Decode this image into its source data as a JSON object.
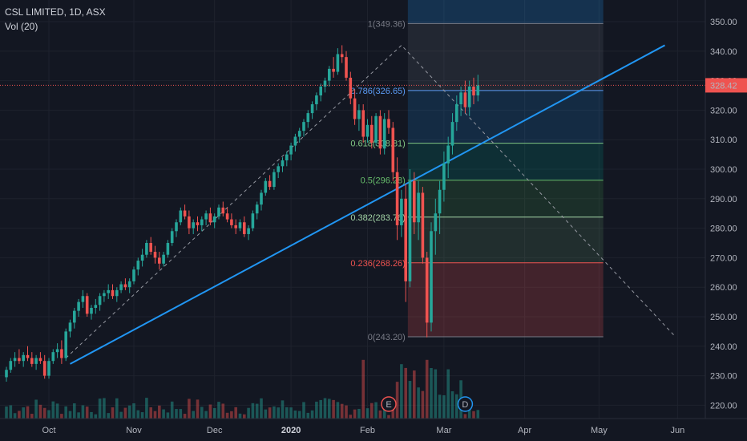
{
  "legend": {
    "symbol_line": "CSL LIMITED, 1D, ASX",
    "volume_line": "Vol (20)"
  },
  "colors": {
    "background": "#131722",
    "grid": "#1e222d",
    "up": "#26a69a",
    "down": "#ef5350",
    "trendline": "#2196f3",
    "price_tag": "#ef5350"
  },
  "chart_data": {
    "type": "candlestick",
    "ylim": [
      215,
      355
    ],
    "grid": true,
    "y_ticks": [
      "350.00",
      "340.00",
      "330.00",
      "320.00",
      "310.00",
      "300.00",
      "290.00",
      "280.00",
      "270.00",
      "260.00",
      "250.00",
      "240.00",
      "230.00",
      "220.00"
    ],
    "x_ticks": [
      {
        "label": "Oct",
        "bold": false
      },
      {
        "label": "Nov",
        "bold": false
      },
      {
        "label": "Dec",
        "bold": false
      },
      {
        "label": "2020",
        "bold": true
      },
      {
        "label": "Feb",
        "bold": false
      },
      {
        "label": "Mar",
        "bold": false
      },
      {
        "label": "Apr",
        "bold": false
      },
      {
        "label": "May",
        "bold": false
      },
      {
        "label": "Jun",
        "bold": false
      }
    ],
    "last_price": {
      "value": 328.42,
      "label": "328.42"
    },
    "fibonacci": [
      {
        "ratio": "1",
        "label": "1(349.36)",
        "price": 349.36,
        "color": "#787b86"
      },
      {
        "ratio": "0.786",
        "label": "0.786(326.65)",
        "price": 326.65,
        "color": "#5b9cf6"
      },
      {
        "ratio": "0.618",
        "label": "0.618(308.81)",
        "price": 308.81,
        "color": "#81c784"
      },
      {
        "ratio": "0.5",
        "label": "0.5(296.28)",
        "price": 296.28,
        "color": "#66bb6a"
      },
      {
        "ratio": "0.382",
        "label": "0.382(283.76)",
        "price": 283.76,
        "color": "#a5d6a7"
      },
      {
        "ratio": "0.236",
        "label": "0.236(268.26)",
        "price": 268.26,
        "color": "#ef5350"
      },
      {
        "ratio": "0",
        "label": "0(243.20)",
        "price": 243.2,
        "color": "#787b86"
      }
    ],
    "event_markers": [
      {
        "letter": "E",
        "type": "earnings"
      },
      {
        "letter": "D",
        "type": "dividend"
      }
    ],
    "candles": [
      {
        "o": 229.5,
        "h": 233,
        "l": 228,
        "c": 232
      },
      {
        "o": 232,
        "h": 236,
        "l": 231,
        "c": 235
      },
      {
        "o": 235,
        "h": 238,
        "l": 233,
        "c": 236
      },
      {
        "o": 236,
        "h": 239,
        "l": 234,
        "c": 235
      },
      {
        "o": 235,
        "h": 238,
        "l": 233,
        "c": 237
      },
      {
        "o": 237,
        "h": 240,
        "l": 235,
        "c": 236
      },
      {
        "o": 236,
        "h": 238,
        "l": 233,
        "c": 234
      },
      {
        "o": 234,
        "h": 237,
        "l": 232,
        "c": 236
      },
      {
        "o": 236,
        "h": 238,
        "l": 234,
        "c": 235
      },
      {
        "o": 235,
        "h": 237,
        "l": 229,
        "c": 230
      },
      {
        "o": 230,
        "h": 236,
        "l": 229,
        "c": 235
      },
      {
        "o": 235,
        "h": 239,
        "l": 234,
        "c": 238
      },
      {
        "o": 238,
        "h": 241,
        "l": 236,
        "c": 239
      },
      {
        "o": 239,
        "h": 242,
        "l": 234,
        "c": 236
      },
      {
        "o": 236,
        "h": 246,
        "l": 235,
        "c": 245
      },
      {
        "o": 245,
        "h": 249,
        "l": 243,
        "c": 248
      },
      {
        "o": 248,
        "h": 253,
        "l": 246,
        "c": 252
      },
      {
        "o": 252,
        "h": 256,
        "l": 250,
        "c": 255
      },
      {
        "o": 255,
        "h": 259,
        "l": 253,
        "c": 257
      },
      {
        "o": 257,
        "h": 258,
        "l": 250,
        "c": 251
      },
      {
        "o": 251,
        "h": 254,
        "l": 249,
        "c": 253
      },
      {
        "o": 253,
        "h": 256,
        "l": 251,
        "c": 254
      },
      {
        "o": 254,
        "h": 258,
        "l": 252,
        "c": 257
      },
      {
        "o": 257,
        "h": 259,
        "l": 255,
        "c": 258
      },
      {
        "o": 258,
        "h": 261,
        "l": 256,
        "c": 259
      },
      {
        "o": 259,
        "h": 261,
        "l": 256,
        "c": 257
      },
      {
        "o": 257,
        "h": 260,
        "l": 255,
        "c": 259
      },
      {
        "o": 259,
        "h": 262,
        "l": 258,
        "c": 261
      },
      {
        "o": 261,
        "h": 263,
        "l": 259,
        "c": 260
      },
      {
        "o": 260,
        "h": 263,
        "l": 258,
        "c": 262
      },
      {
        "o": 262,
        "h": 267,
        "l": 261,
        "c": 266
      },
      {
        "o": 266,
        "h": 270,
        "l": 264,
        "c": 269
      },
      {
        "o": 269,
        "h": 273,
        "l": 267,
        "c": 271
      },
      {
        "o": 271,
        "h": 276,
        "l": 270,
        "c": 275
      },
      {
        "o": 275,
        "h": 277,
        "l": 271,
        "c": 272
      },
      {
        "o": 272,
        "h": 274,
        "l": 268,
        "c": 270
      },
      {
        "o": 270,
        "h": 272,
        "l": 266,
        "c": 268
      },
      {
        "o": 268,
        "h": 272,
        "l": 267,
        "c": 271
      },
      {
        "o": 271,
        "h": 276,
        "l": 270,
        "c": 275
      },
      {
        "o": 275,
        "h": 280,
        "l": 274,
        "c": 279
      },
      {
        "o": 279,
        "h": 283,
        "l": 277,
        "c": 282
      },
      {
        "o": 282,
        "h": 287,
        "l": 281,
        "c": 286
      },
      {
        "o": 286,
        "h": 288,
        "l": 283,
        "c": 284
      },
      {
        "o": 284,
        "h": 286,
        "l": 278,
        "c": 280
      },
      {
        "o": 280,
        "h": 283,
        "l": 278,
        "c": 282
      },
      {
        "o": 282,
        "h": 284,
        "l": 279,
        "c": 281
      },
      {
        "o": 281,
        "h": 284,
        "l": 279,
        "c": 283
      },
      {
        "o": 283,
        "h": 286,
        "l": 281,
        "c": 285
      },
      {
        "o": 285,
        "h": 287,
        "l": 281,
        "c": 282
      },
      {
        "o": 282,
        "h": 285,
        "l": 280,
        "c": 284
      },
      {
        "o": 284,
        "h": 288,
        "l": 283,
        "c": 287
      },
      {
        "o": 287,
        "h": 289,
        "l": 284,
        "c": 285
      },
      {
        "o": 285,
        "h": 287,
        "l": 282,
        "c": 283
      },
      {
        "o": 283,
        "h": 285,
        "l": 280,
        "c": 281
      },
      {
        "o": 281,
        "h": 283,
        "l": 278,
        "c": 280
      },
      {
        "o": 280,
        "h": 283,
        "l": 279,
        "c": 282
      },
      {
        "o": 282,
        "h": 284,
        "l": 277,
        "c": 278
      },
      {
        "o": 278,
        "h": 281,
        "l": 276,
        "c": 280
      },
      {
        "o": 280,
        "h": 286,
        "l": 279,
        "c": 285
      },
      {
        "o": 285,
        "h": 289,
        "l": 283,
        "c": 288
      },
      {
        "o": 288,
        "h": 293,
        "l": 286,
        "c": 292
      },
      {
        "o": 292,
        "h": 297,
        "l": 291,
        "c": 296
      },
      {
        "o": 296,
        "h": 298,
        "l": 293,
        "c": 294
      },
      {
        "o": 294,
        "h": 300,
        "l": 293,
        "c": 299
      },
      {
        "o": 299,
        "h": 302,
        "l": 297,
        "c": 301
      },
      {
        "o": 301,
        "h": 304,
        "l": 299,
        "c": 303
      },
      {
        "o": 303,
        "h": 306,
        "l": 301,
        "c": 305
      },
      {
        "o": 305,
        "h": 309,
        "l": 303,
        "c": 308
      },
      {
        "o": 308,
        "h": 312,
        "l": 306,
        "c": 311
      },
      {
        "o": 311,
        "h": 314,
        "l": 309,
        "c": 313
      },
      {
        "o": 313,
        "h": 317,
        "l": 311,
        "c": 316
      },
      {
        "o": 316,
        "h": 320,
        "l": 314,
        "c": 319
      },
      {
        "o": 319,
        "h": 323,
        "l": 317,
        "c": 322
      },
      {
        "o": 322,
        "h": 326,
        "l": 320,
        "c": 325
      },
      {
        "o": 325,
        "h": 329,
        "l": 323,
        "c": 328
      },
      {
        "o": 328,
        "h": 331,
        "l": 326,
        "c": 330
      },
      {
        "o": 330,
        "h": 335,
        "l": 328,
        "c": 334
      },
      {
        "o": 334,
        "h": 338,
        "l": 331,
        "c": 333
      },
      {
        "o": 333,
        "h": 341,
        "l": 332,
        "c": 339
      },
      {
        "o": 339,
        "h": 342,
        "l": 336,
        "c": 338
      },
      {
        "o": 338,
        "h": 340,
        "l": 330,
        "c": 331
      },
      {
        "o": 331,
        "h": 333,
        "l": 322,
        "c": 324
      },
      {
        "o": 324,
        "h": 327,
        "l": 315,
        "c": 317
      },
      {
        "o": 317,
        "h": 322,
        "l": 313,
        "c": 320
      },
      {
        "o": 320,
        "h": 322,
        "l": 309,
        "c": 311
      },
      {
        "o": 311,
        "h": 317,
        "l": 309,
        "c": 315
      },
      {
        "o": 315,
        "h": 318,
        "l": 307,
        "c": 309
      },
      {
        "o": 309,
        "h": 319,
        "l": 308,
        "c": 318
      },
      {
        "o": 318,
        "h": 320,
        "l": 305,
        "c": 307
      },
      {
        "o": 307,
        "h": 319,
        "l": 305,
        "c": 317
      },
      {
        "o": 317,
        "h": 320,
        "l": 312,
        "c": 314
      },
      {
        "o": 314,
        "h": 316,
        "l": 296,
        "c": 299
      },
      {
        "o": 299,
        "h": 304,
        "l": 276,
        "c": 281
      },
      {
        "o": 281,
        "h": 293,
        "l": 277,
        "c": 290
      },
      {
        "o": 290,
        "h": 295,
        "l": 255,
        "c": 262
      },
      {
        "o": 262,
        "h": 300,
        "l": 260,
        "c": 296
      },
      {
        "o": 296,
        "h": 299,
        "l": 278,
        "c": 282
      },
      {
        "o": 282,
        "h": 296,
        "l": 276,
        "c": 292
      },
      {
        "o": 292,
        "h": 294,
        "l": 268,
        "c": 270
      },
      {
        "o": 270,
        "h": 272,
        "l": 243,
        "c": 248
      },
      {
        "o": 248,
        "h": 282,
        "l": 245,
        "c": 279
      },
      {
        "o": 279,
        "h": 290,
        "l": 271,
        "c": 285
      },
      {
        "o": 285,
        "h": 296,
        "l": 278,
        "c": 293
      },
      {
        "o": 293,
        "h": 306,
        "l": 289,
        "c": 302
      },
      {
        "o": 302,
        "h": 311,
        "l": 297,
        "c": 308
      },
      {
        "o": 308,
        "h": 319,
        "l": 305,
        "c": 316
      },
      {
        "o": 316,
        "h": 325,
        "l": 313,
        "c": 322
      },
      {
        "o": 322,
        "h": 328,
        "l": 318,
        "c": 326
      },
      {
        "o": 326,
        "h": 330,
        "l": 319,
        "c": 321
      },
      {
        "o": 321,
        "h": 330,
        "l": 318,
        "c": 328
      },
      {
        "o": 328,
        "h": 331,
        "l": 322,
        "c": 325
      },
      {
        "o": 325,
        "h": 332,
        "l": 323,
        "c": 328.4
      }
    ]
  }
}
